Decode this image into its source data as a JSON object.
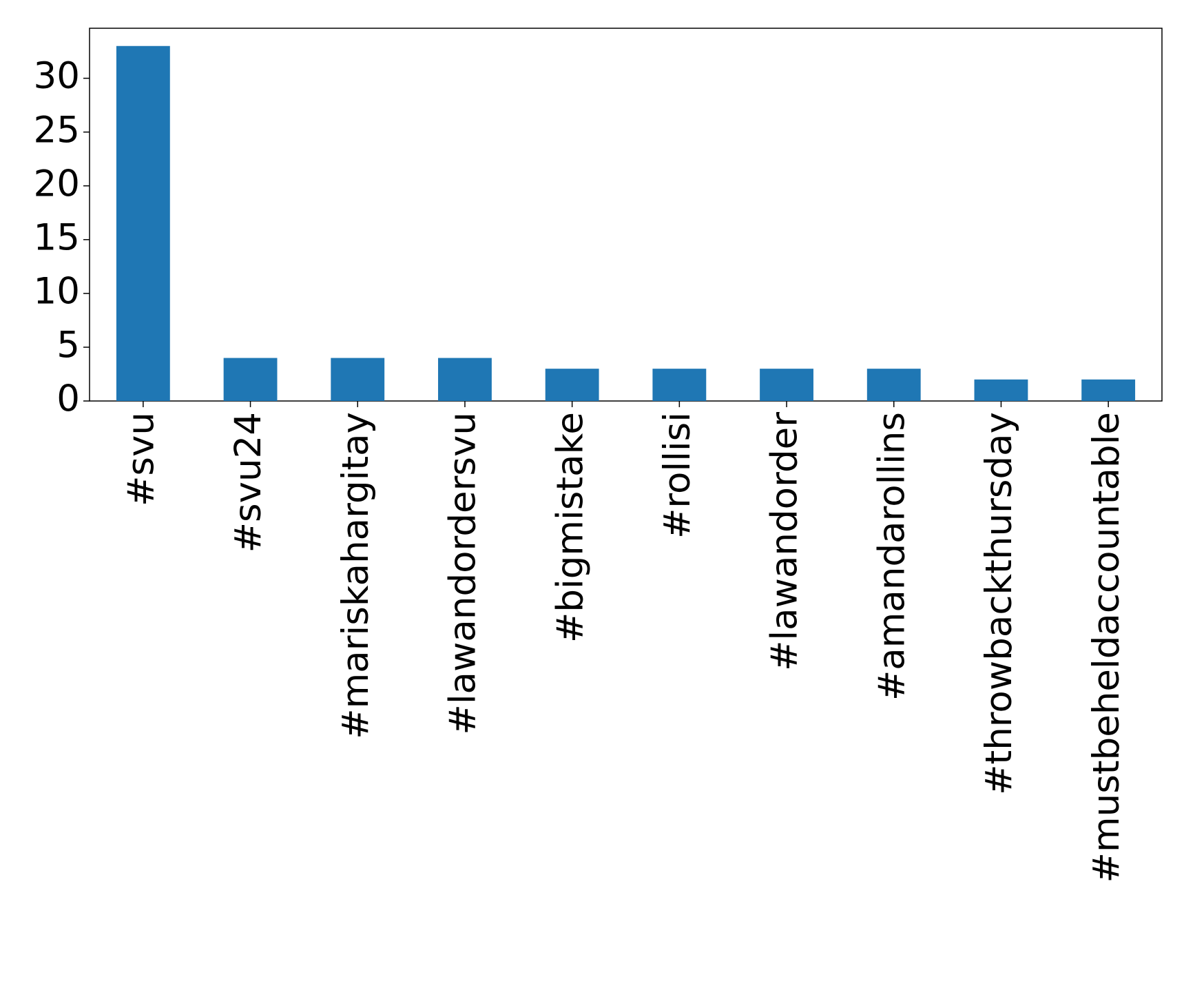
{
  "chart_data": {
    "type": "bar",
    "categories": [
      "#svu",
      "#svu24",
      "#mariskahargitay",
      "#lawandordersvu",
      "#bigmistake",
      "#rollisi",
      "#lawandorder",
      "#amandarollins",
      "#throwbackthursday",
      "#mustbeheldaccountable"
    ],
    "values": [
      33,
      4,
      4,
      4,
      3,
      3,
      3,
      3,
      2,
      2
    ],
    "color": "#1f77b4",
    "ylim": [
      0,
      34.65
    ],
    "yticks": [
      0,
      5,
      10,
      15,
      20,
      25,
      30
    ],
    "grid": false
  }
}
